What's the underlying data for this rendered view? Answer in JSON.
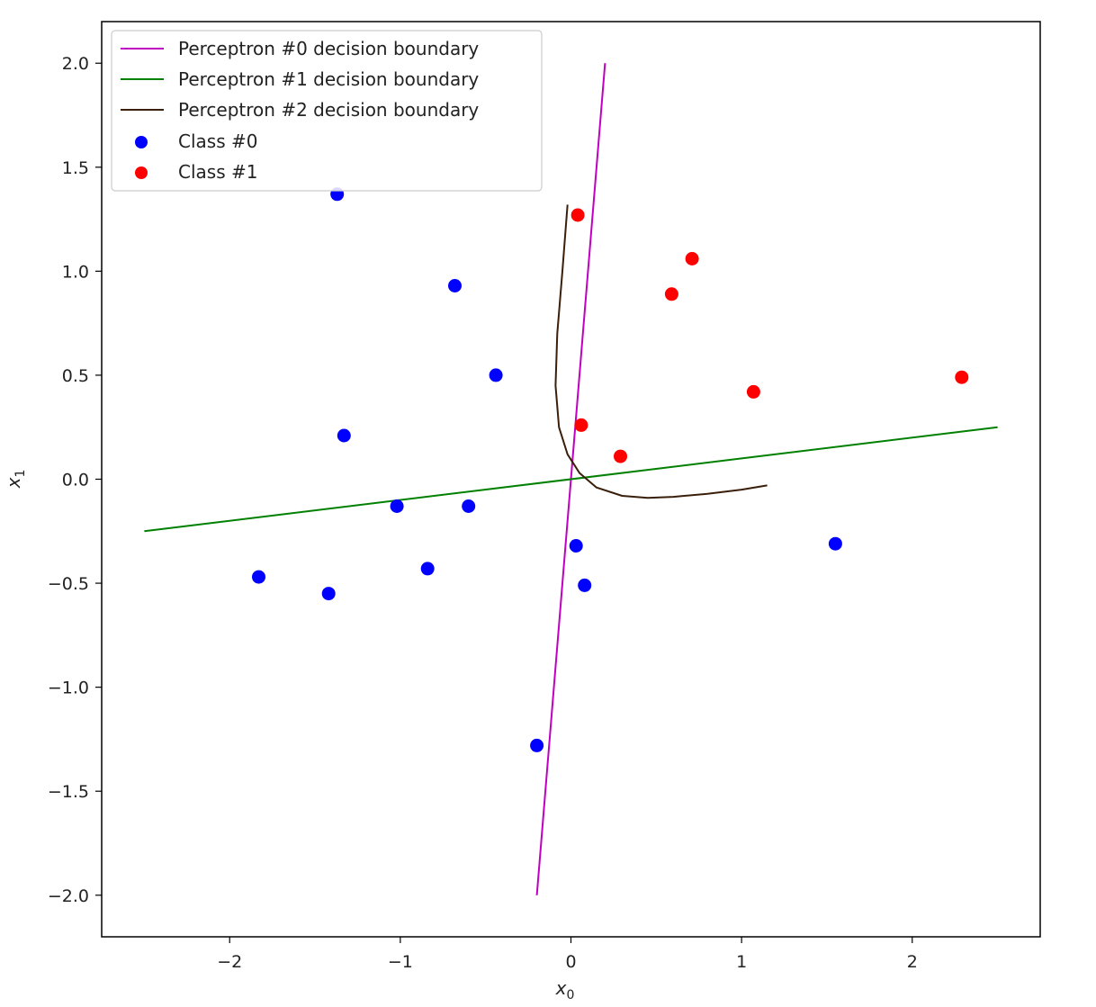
{
  "chart_data": {
    "type": "scatter",
    "xlabel": "x",
    "xlabel_sub": "0",
    "ylabel": "x",
    "ylabel_sub": "1",
    "xlim": [
      -2.75,
      2.75
    ],
    "ylim": [
      -2.2,
      2.2
    ],
    "xticks": [
      -2,
      -1,
      0,
      1,
      2
    ],
    "xtick_labels": [
      "−2",
      "−1",
      "0",
      "1",
      "2"
    ],
    "yticks": [
      2.0,
      1.5,
      1.0,
      0.5,
      0.0,
      -0.5,
      -1.0,
      -1.5,
      -2.0
    ],
    "ytick_labels": [
      "2.0",
      "1.5",
      "1.0",
      "0.5",
      "0.0",
      "−0.5",
      "−1.0",
      "−1.5",
      "−2.0"
    ],
    "grid": false,
    "legend_position": "top-left",
    "lines": [
      {
        "name": "Perceptron #0 decision boundary",
        "color": "#c000c0",
        "points": [
          [
            0.2,
            2.0
          ],
          [
            -0.2,
            -2.0
          ]
        ]
      },
      {
        "name": "Perceptron #1 decision boundary",
        "color": "#008000",
        "points": [
          [
            -2.5,
            -0.25
          ],
          [
            2.5,
            0.25
          ]
        ]
      },
      {
        "name": "Perceptron #2 decision boundary",
        "color": "#3a1f0a",
        "points": [
          [
            -0.02,
            1.32
          ],
          [
            -0.05,
            1.0
          ],
          [
            -0.08,
            0.7
          ],
          [
            -0.09,
            0.45
          ],
          [
            -0.07,
            0.25
          ],
          [
            -0.02,
            0.12
          ],
          [
            0.05,
            0.03
          ],
          [
            0.15,
            -0.04
          ],
          [
            0.3,
            -0.08
          ],
          [
            0.45,
            -0.09
          ],
          [
            0.6,
            -0.085
          ],
          [
            0.8,
            -0.07
          ],
          [
            1.0,
            -0.05
          ],
          [
            1.15,
            -0.03
          ]
        ]
      }
    ],
    "series": [
      {
        "name": "Class #0",
        "color": "#0000ff",
        "points": [
          [
            -1.37,
            1.37
          ],
          [
            -0.68,
            0.93
          ],
          [
            -0.44,
            0.5
          ],
          [
            -1.33,
            0.21
          ],
          [
            -1.02,
            -0.13
          ],
          [
            -0.6,
            -0.13
          ],
          [
            -1.83,
            -0.47
          ],
          [
            -1.42,
            -0.55
          ],
          [
            -0.84,
            -0.43
          ],
          [
            0.03,
            -0.32
          ],
          [
            0.08,
            -0.51
          ],
          [
            1.55,
            -0.31
          ],
          [
            -0.2,
            -1.28
          ]
        ]
      },
      {
        "name": "Class #1",
        "color": "#ff0000",
        "points": [
          [
            0.04,
            1.27
          ],
          [
            0.71,
            1.06
          ],
          [
            0.59,
            0.89
          ],
          [
            1.07,
            0.42
          ],
          [
            2.29,
            0.49
          ],
          [
            0.06,
            0.26
          ],
          [
            0.29,
            0.11
          ]
        ]
      }
    ]
  }
}
